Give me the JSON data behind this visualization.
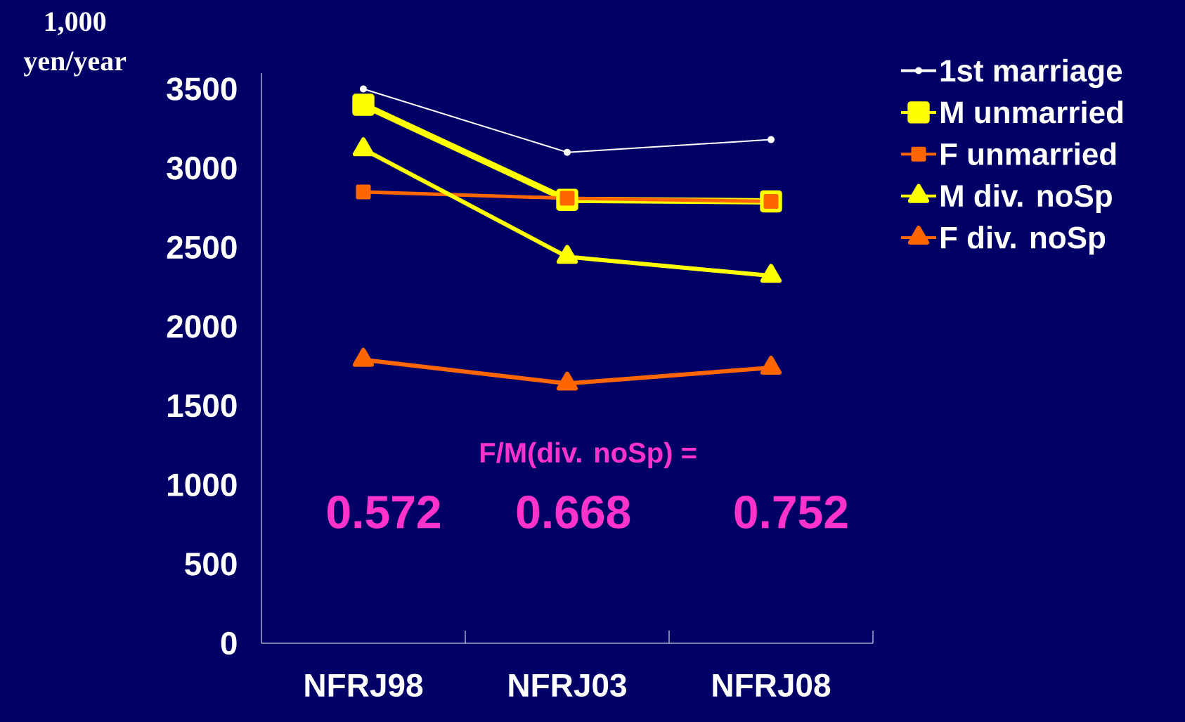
{
  "chart_data": {
    "type": "line",
    "ylabel": "1,000 yen/year",
    "categories": [
      "NFRJ98",
      "NFRJ03",
      "NFRJ08"
    ],
    "series": [
      {
        "name": "1st marriage",
        "color": "#ffffff",
        "marker": "circle",
        "values": [
          3500,
          3100,
          3180
        ]
      },
      {
        "name": "M unmarried",
        "color": "#ffff00",
        "marker": "square",
        "values": [
          3400,
          2800,
          2790
        ]
      },
      {
        "name": "F unmarried",
        "color": "#ff6600",
        "marker": "square",
        "values": [
          2850,
          2810,
          2790
        ]
      },
      {
        "name": "M div. noSp",
        "color": "#ffff00",
        "marker": "triangle",
        "values": [
          3120,
          2440,
          2320
        ]
      },
      {
        "name": "F div. noSp",
        "color": "#ff6600",
        "marker": "triangle",
        "values": [
          1790,
          1640,
          1740
        ]
      }
    ],
    "ylim": [
      0,
      3600
    ],
    "yticks": [
      0,
      500,
      1000,
      1500,
      2000,
      2500,
      3000,
      3500
    ],
    "grid": false,
    "legend": "top right",
    "annotations": [
      "F/M(div. noSp) =",
      "0.572",
      "0.668",
      "0.752"
    ]
  }
}
